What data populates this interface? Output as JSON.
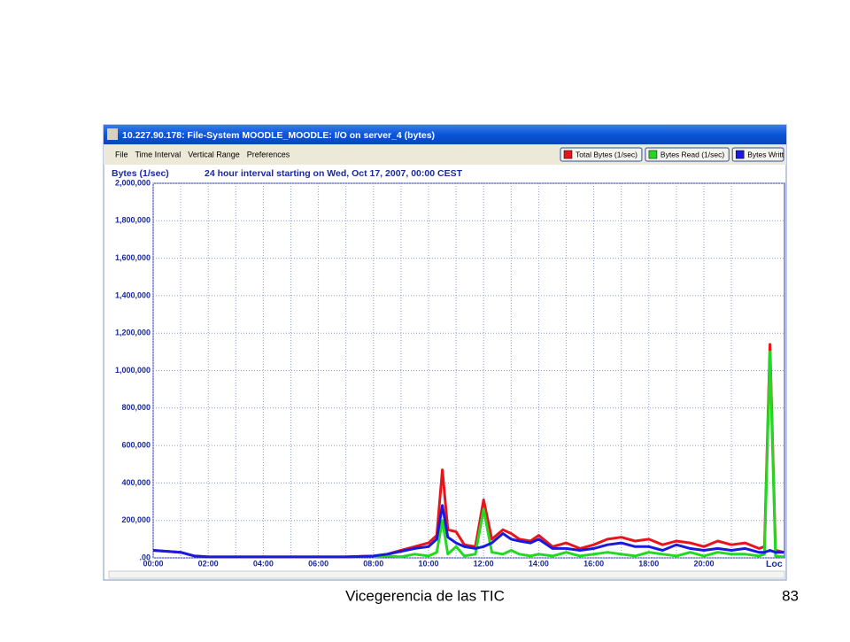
{
  "window": {
    "title": "10.227.90.178: File-System MOODLE_MOODLE: I/O on server_4 (bytes)"
  },
  "menu": {
    "items": [
      "File",
      "Time Interval",
      "Vertical Range",
      "Preferences"
    ]
  },
  "chart_data": {
    "type": "line",
    "y_label": "Bytes (1/sec)",
    "subtitle": "24 hour interval starting on Wed, Oct 17, 2007, 00:00 CEST",
    "x": [
      0,
      0.5,
      1,
      1.5,
      2,
      3,
      4,
      5,
      6,
      7,
      8,
      8.5,
      9,
      9.5,
      10,
      10.3,
      10.5,
      10.7,
      11,
      11.3,
      11.7,
      12,
      12.3,
      12.7,
      13,
      13.3,
      13.7,
      14,
      14.5,
      15,
      15.5,
      16,
      16.5,
      17,
      17.5,
      18,
      18.5,
      19,
      19.5,
      20,
      20.5,
      21,
      21.5,
      22,
      22.2,
      22.4,
      22.6,
      22.9
    ],
    "series": [
      {
        "name": "Total Bytes (1/sec)",
        "color": "#e8141c",
        "values": [
          40000,
          35000,
          30000,
          10000,
          5000,
          5000,
          5000,
          5000,
          5000,
          5000,
          10000,
          20000,
          40000,
          60000,
          80000,
          120000,
          470000,
          150000,
          140000,
          70000,
          60000,
          310000,
          100000,
          150000,
          130000,
          100000,
          90000,
          120000,
          60000,
          80000,
          50000,
          70000,
          100000,
          110000,
          90000,
          100000,
          70000,
          90000,
          80000,
          60000,
          90000,
          70000,
          80000,
          50000,
          60000,
          1140000,
          40000,
          30000
        ]
      },
      {
        "name": "Bytes Read (1/sec)",
        "color": "#22d822",
        "values": [
          null,
          null,
          null,
          null,
          null,
          null,
          null,
          null,
          null,
          null,
          5000,
          10000,
          5000,
          20000,
          10000,
          30000,
          200000,
          20000,
          60000,
          10000,
          20000,
          260000,
          30000,
          20000,
          40000,
          20000,
          10000,
          20000,
          10000,
          30000,
          10000,
          20000,
          30000,
          20000,
          10000,
          30000,
          20000,
          10000,
          30000,
          10000,
          30000,
          20000,
          20000,
          10000,
          20000,
          1100000,
          10000,
          5000
        ]
      },
      {
        "name": "Bytes Writt",
        "color": "#1a1adc",
        "values": [
          40000,
          35000,
          30000,
          10000,
          5000,
          5000,
          5000,
          5000,
          5000,
          5000,
          10000,
          20000,
          35000,
          50000,
          60000,
          100000,
          280000,
          110000,
          80000,
          60000,
          50000,
          60000,
          80000,
          130000,
          100000,
          90000,
          80000,
          100000,
          50000,
          50000,
          40000,
          50000,
          70000,
          80000,
          60000,
          60000,
          40000,
          70000,
          50000,
          40000,
          50000,
          40000,
          50000,
          30000,
          30000,
          40000,
          30000,
          30000
        ]
      }
    ],
    "xlim": [
      0,
      22.93
    ],
    "xticks": [
      {
        "value": 0,
        "label": "00:00"
      },
      {
        "value": 2,
        "label": "02:00"
      },
      {
        "value": 4,
        "label": "04:00"
      },
      {
        "value": 6,
        "label": "06:00"
      },
      {
        "value": 8,
        "label": "08:00"
      },
      {
        "value": 10,
        "label": "10:00"
      },
      {
        "value": 12,
        "label": "12:00"
      },
      {
        "value": 14,
        "label": "14:00"
      },
      {
        "value": 16,
        "label": "16:00"
      },
      {
        "value": 18,
        "label": "18:00"
      },
      {
        "value": 20,
        "label": "20:00"
      }
    ],
    "ylim": [
      0,
      2000000
    ],
    "yticks": [
      {
        "value": 0,
        "label": ".00"
      },
      {
        "value": 200000,
        "label": "200,000"
      },
      {
        "value": 400000,
        "label": "400,000"
      },
      {
        "value": 600000,
        "label": "600,000"
      },
      {
        "value": 800000,
        "label": "800,000"
      },
      {
        "value": 1000000,
        "label": "1,000,000"
      },
      {
        "value": 1200000,
        "label": "1,200,000"
      },
      {
        "value": 1400000,
        "label": "1,400,000"
      },
      {
        "value": 1600000,
        "label": "1,600,000"
      },
      {
        "value": 1800000,
        "label": "1,800,000"
      },
      {
        "value": 2000000,
        "label": "2,000,000"
      }
    ],
    "grid": true
  },
  "status_text": "Loc",
  "footer": {
    "left": "Vicegerencia de las TIC",
    "page": "83"
  }
}
